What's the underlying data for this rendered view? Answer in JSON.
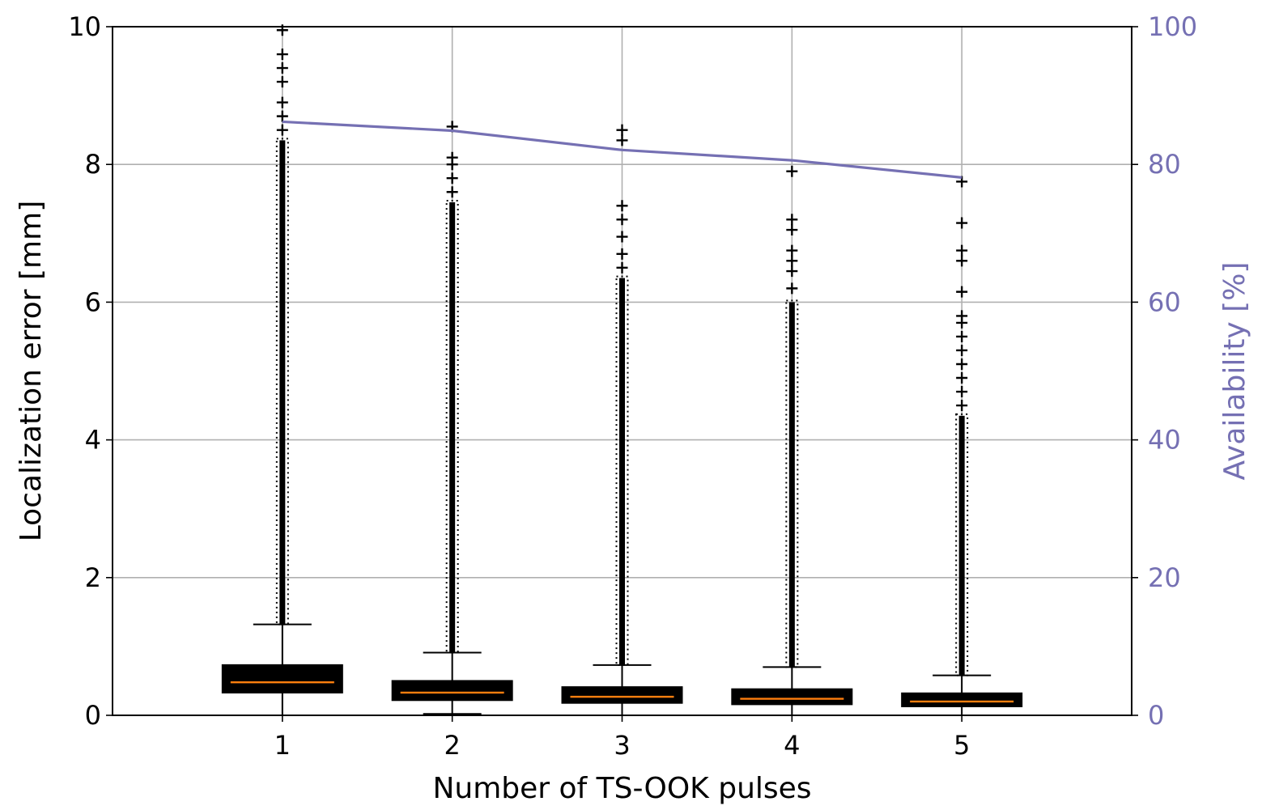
{
  "chart_data": {
    "type": "box",
    "title": "",
    "xlabel": "Number of  TS-OOK pulses",
    "ylabel": "Localization error [mm]",
    "ylabel_right": "Availability [%]",
    "categories": [
      "1",
      "2",
      "3",
      "4",
      "5"
    ],
    "ylim": [
      0,
      10
    ],
    "ylim_right": [
      0,
      100
    ],
    "yticks": [
      "0",
      "2",
      "4",
      "6",
      "8",
      "10"
    ],
    "yticks_right": [
      "0",
      "20",
      "40",
      "60",
      "80",
      "100"
    ],
    "xlim": [
      0,
      6
    ],
    "grid": true,
    "boxes": [
      {
        "category": "1",
        "q1": 0.33,
        "median": 0.48,
        "q3": 0.73,
        "whisker_low": 0.0,
        "whisker_high": 1.32,
        "outlier_range": [
          1.32,
          8.35
        ],
        "outliers_sparse": [
          8.5,
          8.7,
          8.9,
          9.2,
          9.4,
          9.6,
          9.95
        ]
      },
      {
        "category": "2",
        "q1": 0.22,
        "median": 0.33,
        "q3": 0.5,
        "whisker_low": 0.02,
        "whisker_high": 0.91,
        "outlier_range": [
          0.91,
          7.45
        ],
        "outliers_sparse": [
          7.6,
          7.8,
          8.0,
          8.1,
          8.55
        ]
      },
      {
        "category": "3",
        "q1": 0.18,
        "median": 0.27,
        "q3": 0.41,
        "whisker_low": 0.0,
        "whisker_high": 0.73,
        "outlier_range": [
          0.73,
          6.35
        ],
        "outliers_sparse": [
          6.5,
          6.7,
          6.95,
          7.2,
          7.4,
          8.35,
          8.5
        ]
      },
      {
        "category": "4",
        "q1": 0.16,
        "median": 0.24,
        "q3": 0.38,
        "whisker_low": 0.0,
        "whisker_high": 0.7,
        "outlier_range": [
          0.7,
          6.0
        ],
        "outliers_sparse": [
          6.2,
          6.45,
          6.6,
          6.75,
          7.05,
          7.2,
          7.9
        ]
      },
      {
        "category": "5",
        "q1": 0.13,
        "median": 0.2,
        "q3": 0.32,
        "whisker_low": 0.0,
        "whisker_high": 0.58,
        "outlier_range": [
          0.58,
          4.35
        ],
        "outliers_sparse": [
          4.5,
          4.7,
          4.9,
          5.1,
          5.3,
          5.5,
          5.7,
          5.8,
          6.15,
          6.6,
          6.75,
          7.15,
          7.75
        ]
      }
    ],
    "series": [
      {
        "axis": "right",
        "x": [
          1,
          2,
          3,
          4,
          5
        ],
        "values": [
          86.2,
          84.9,
          82.1,
          80.6,
          78.1
        ]
      }
    ],
    "colors": {
      "box": "#000000",
      "median": "#ff7f0e",
      "availability": "#7570b3",
      "grid": "#b0b0b0",
      "right_axis_text": "#7570b3"
    }
  }
}
